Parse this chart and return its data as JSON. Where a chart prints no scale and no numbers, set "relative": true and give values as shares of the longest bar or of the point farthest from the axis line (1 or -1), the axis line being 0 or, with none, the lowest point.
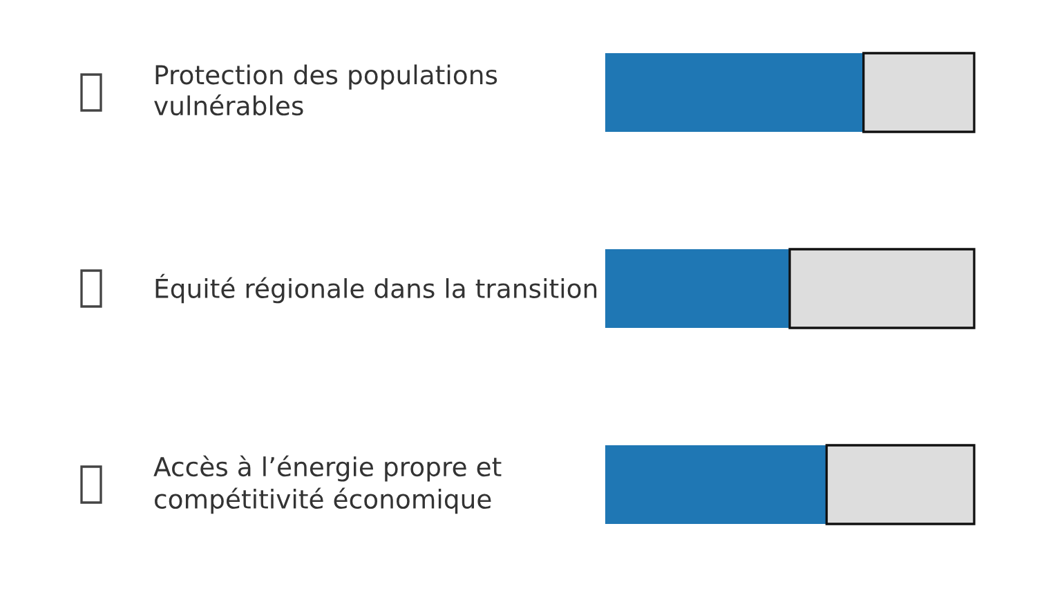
{
  "chart_data": {
    "type": "bar",
    "orientation": "horizontal",
    "stacked": true,
    "relative": true,
    "categories": [
      "Protection des populations vulnérables",
      "Équité régionale dans la transition",
      "Accès à l’énergie propre et compétitivité économique"
    ],
    "series": [
      {
        "color": "#1f77b4",
        "values": [
          0.7,
          0.5,
          0.6
        ]
      },
      {
        "color": "#dddddd",
        "values": [
          0.3,
          0.5,
          0.4
        ]
      }
    ]
  }
}
